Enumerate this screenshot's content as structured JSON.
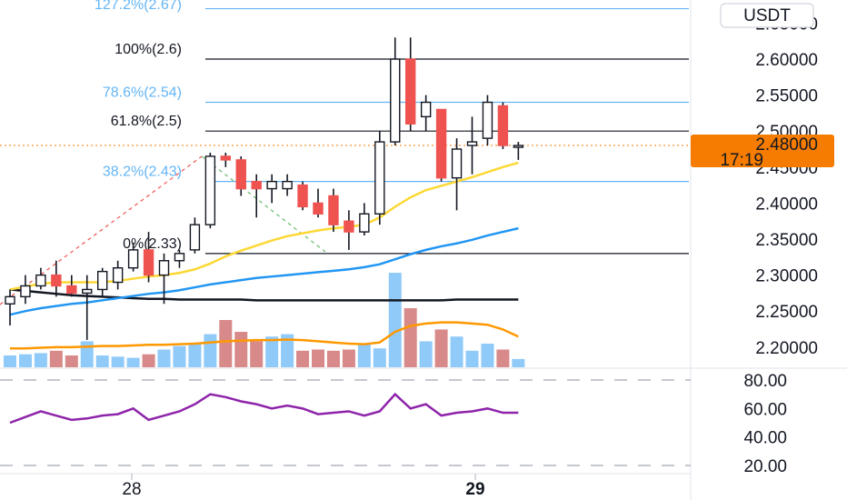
{
  "currency_badge": "USDT",
  "last_price": {
    "label": "2.48000",
    "countdown": "17:19",
    "color": "#f57c00",
    "value": 2.48
  },
  "price_axis": {
    "ticks": [
      "2.60000",
      "2.55000",
      "2.50000",
      "2.45000",
      "2.40000",
      "2.35000",
      "2.30000",
      "2.25000",
      "2.20000"
    ],
    "top_partial": "2.65000"
  },
  "rsi_axis": {
    "ticks": [
      "80.00",
      "60.00",
      "40.00",
      "20.00"
    ]
  },
  "time_axis": {
    "labels": [
      "28",
      "29"
    ]
  },
  "fib_levels": [
    {
      "label": "127.2%(2.67)",
      "value": 2.67,
      "color": "#64b5f6"
    },
    {
      "label": "100%(2.6)",
      "value": 2.6,
      "color": "#131722"
    },
    {
      "label": "78.6%(2.54)",
      "value": 2.54,
      "color": "#64b5f6"
    },
    {
      "label": "61.8%(2.5)",
      "value": 2.5,
      "color": "#131722"
    },
    {
      "label": "38.2%(2.43)",
      "value": 2.43,
      "color": "#64b5f6"
    },
    {
      "label": "0%(2.33)",
      "value": 2.33,
      "color": "#131722"
    }
  ],
  "chart_data": {
    "type": "candlestick",
    "ylim": [
      2.18,
      2.67
    ],
    "colors": {
      "up": "#ffffff",
      "down": "#ef5350",
      "ma_fast": "#fdd835",
      "ma_mid": "#2196f3",
      "ma_slow": "#131722",
      "rsi": "#8e24aa",
      "vol_up": "#90caf9",
      "vol_down": "#d88a8a",
      "vol_ma": "#ff9800"
    },
    "candles": [
      {
        "o": 2.26,
        "h": 2.28,
        "l": 2.23,
        "c": 2.27
      },
      {
        "o": 2.27,
        "h": 2.3,
        "l": 2.26,
        "c": 2.285
      },
      {
        "o": 2.285,
        "h": 2.31,
        "l": 2.28,
        "c": 2.3
      },
      {
        "o": 2.3,
        "h": 2.32,
        "l": 2.27,
        "c": 2.285
      },
      {
        "o": 2.285,
        "h": 2.3,
        "l": 2.27,
        "c": 2.275
      },
      {
        "o": 2.275,
        "h": 2.3,
        "l": 2.21,
        "c": 2.28
      },
      {
        "o": 2.28,
        "h": 2.31,
        "l": 2.27,
        "c": 2.305
      },
      {
        "o": 2.29,
        "h": 2.32,
        "l": 2.28,
        "c": 2.31
      },
      {
        "o": 2.31,
        "h": 2.345,
        "l": 2.305,
        "c": 2.335
      },
      {
        "o": 2.335,
        "h": 2.36,
        "l": 2.29,
        "c": 2.3
      },
      {
        "o": 2.3,
        "h": 2.33,
        "l": 2.26,
        "c": 2.32
      },
      {
        "o": 2.32,
        "h": 2.335,
        "l": 2.31,
        "c": 2.33
      },
      {
        "o": 2.335,
        "h": 2.38,
        "l": 2.33,
        "c": 2.37
      },
      {
        "o": 2.37,
        "h": 2.47,
        "l": 2.365,
        "c": 2.465
      },
      {
        "o": 2.465,
        "h": 2.47,
        "l": 2.45,
        "c": 2.46
      },
      {
        "o": 2.46,
        "h": 2.465,
        "l": 2.41,
        "c": 2.42
      },
      {
        "o": 2.43,
        "h": 2.44,
        "l": 2.38,
        "c": 2.42
      },
      {
        "o": 2.42,
        "h": 2.44,
        "l": 2.4,
        "c": 2.43
      },
      {
        "o": 2.42,
        "h": 2.44,
        "l": 2.41,
        "c": 2.43
      },
      {
        "o": 2.425,
        "h": 2.43,
        "l": 2.39,
        "c": 2.395
      },
      {
        "o": 2.4,
        "h": 2.42,
        "l": 2.38,
        "c": 2.385
      },
      {
        "o": 2.41,
        "h": 2.42,
        "l": 2.36,
        "c": 2.37
      },
      {
        "o": 2.375,
        "h": 2.39,
        "l": 2.335,
        "c": 2.36
      },
      {
        "o": 2.36,
        "h": 2.4,
        "l": 2.355,
        "c": 2.385
      },
      {
        "o": 2.385,
        "h": 2.5,
        "l": 2.37,
        "c": 2.485
      },
      {
        "o": 2.485,
        "h": 2.63,
        "l": 2.48,
        "c": 2.6
      },
      {
        "o": 2.6,
        "h": 2.63,
        "l": 2.5,
        "c": 2.51
      },
      {
        "o": 2.52,
        "h": 2.55,
        "l": 2.5,
        "c": 2.54
      },
      {
        "o": 2.53,
        "h": 2.53,
        "l": 2.43,
        "c": 2.435
      },
      {
        "o": 2.435,
        "h": 2.49,
        "l": 2.39,
        "c": 2.475
      },
      {
        "o": 2.48,
        "h": 2.52,
        "l": 2.44,
        "c": 2.485
      },
      {
        "o": 2.49,
        "h": 2.55,
        "l": 2.48,
        "c": 2.54
      },
      {
        "o": 2.535,
        "h": 2.54,
        "l": 2.475,
        "c": 2.48
      },
      {
        "o": 2.48,
        "h": 2.485,
        "l": 2.46,
        "c": 2.48
      }
    ],
    "ma_fast": [
      2.28,
      2.284,
      2.288,
      2.29,
      2.29,
      2.29,
      2.29,
      2.292,
      2.295,
      2.298,
      2.3,
      2.303,
      2.308,
      2.316,
      2.326,
      2.334,
      2.341,
      2.348,
      2.354,
      2.358,
      2.362,
      2.365,
      2.367,
      2.37,
      2.38,
      2.395,
      2.408,
      2.418,
      2.424,
      2.43,
      2.436,
      2.443,
      2.45,
      2.456
    ],
    "ma_mid": [
      2.245,
      2.25,
      2.254,
      2.257,
      2.26,
      2.262,
      2.265,
      2.268,
      2.271,
      2.274,
      2.276,
      2.279,
      2.283,
      2.287,
      2.29,
      2.293,
      2.296,
      2.298,
      2.3,
      2.302,
      2.304,
      2.306,
      2.308,
      2.311,
      2.315,
      2.322,
      2.329,
      2.335,
      2.34,
      2.344,
      2.349,
      2.355,
      2.36,
      2.365
    ],
    "ma_slow": [
      2.28,
      2.278,
      2.276,
      2.274,
      2.272,
      2.271,
      2.27,
      2.269,
      2.268,
      2.267,
      2.267,
      2.266,
      2.266,
      2.266,
      2.266,
      2.266,
      2.265,
      2.265,
      2.265,
      2.265,
      2.265,
      2.265,
      2.265,
      2.265,
      2.265,
      2.265,
      2.265,
      2.265,
      2.265,
      2.266,
      2.266,
      2.266,
      2.266,
      2.266
    ],
    "volume": [
      10,
      11,
      12,
      14,
      10,
      22,
      10,
      9,
      8,
      11,
      15,
      18,
      20,
      28,
      40,
      30,
      22,
      26,
      28,
      14,
      15,
      14,
      15,
      20,
      16,
      80,
      50,
      22,
      32,
      26,
      14,
      20,
      15,
      7
    ],
    "volume_ma": [
      16,
      16,
      16.5,
      17,
      17,
      17.5,
      18,
      18,
      18.5,
      19,
      19,
      19.5,
      20,
      21,
      22,
      22.5,
      23,
      23,
      23.5,
      23,
      22,
      21,
      20,
      19.5,
      21,
      30,
      35,
      37,
      38,
      38,
      37,
      36,
      32,
      26
    ],
    "rsi": [
      50,
      54,
      58,
      55,
      52,
      53,
      55,
      56,
      60,
      52,
      55,
      58,
      63,
      70,
      68,
      65,
      63,
      60,
      62,
      60,
      56,
      57,
      58,
      55,
      58,
      70,
      60,
      63,
      55,
      57,
      58,
      60,
      57,
      57
    ]
  }
}
